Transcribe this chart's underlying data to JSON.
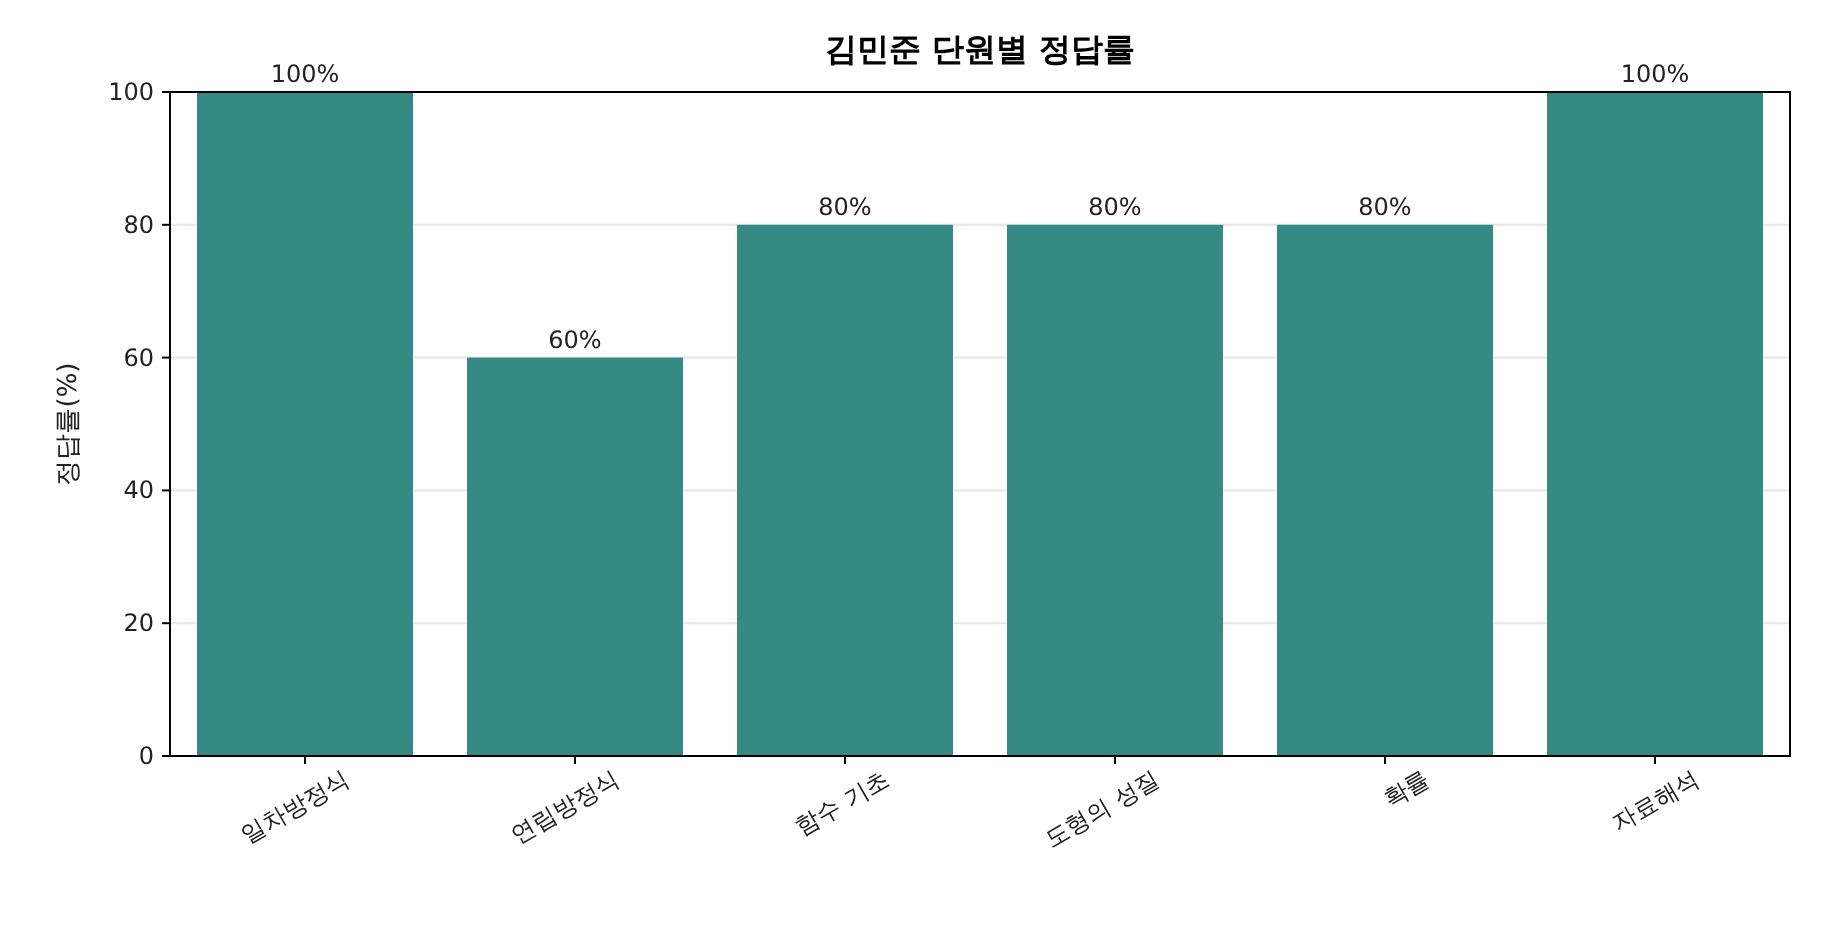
{
  "chart_data": {
    "type": "bar",
    "title": "김민준 단원별 정답률",
    "ylabel": "정답률(%)",
    "categories": [
      "일차방정식",
      "연립방정식",
      "함수 기초",
      "도형의 성질",
      "확률",
      "자료해석"
    ],
    "values": [
      100,
      60,
      80,
      80,
      80,
      100
    ],
    "value_labels": [
      "100%",
      "60%",
      "80%",
      "80%",
      "80%",
      "100%"
    ],
    "color": "#358b84",
    "ylim": [
      0,
      100
    ],
    "yticks": [
      0,
      20,
      40,
      60,
      80,
      100
    ],
    "grid": "y"
  }
}
